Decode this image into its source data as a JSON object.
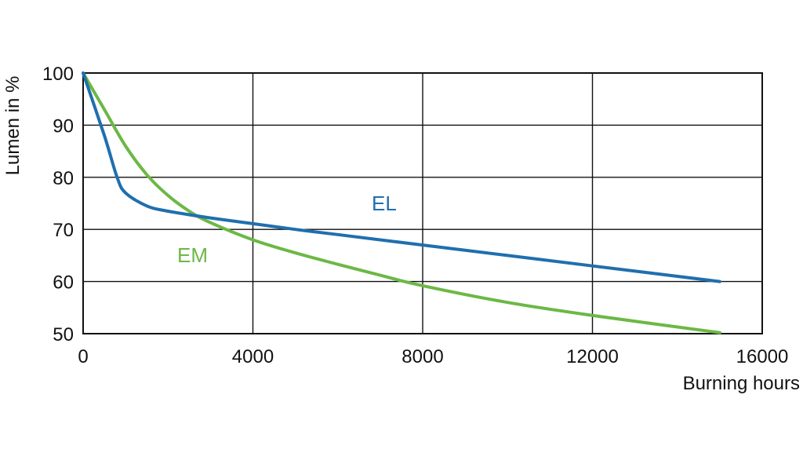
{
  "chart_data": {
    "type": "line",
    "title": "",
    "xlabel": "Burning hours",
    "ylabel": "Lumen in %",
    "xlim": [
      0,
      16000
    ],
    "ylim": [
      50,
      100
    ],
    "x_ticks": [
      "0",
      "4000",
      "8000",
      "12000",
      "16000"
    ],
    "y_ticks": [
      "100",
      "90",
      "80",
      "70",
      "60",
      "50"
    ],
    "grid": true,
    "series": [
      {
        "name": "EL",
        "color": "#1f6fae",
        "points": [
          [
            0,
            100
          ],
          [
            500,
            88
          ],
          [
            800,
            80
          ],
          [
            1000,
            77
          ],
          [
            1500,
            74.5
          ],
          [
            2000,
            73.5
          ],
          [
            3000,
            72.2
          ],
          [
            4000,
            71.1
          ],
          [
            5000,
            70
          ],
          [
            6000,
            69
          ],
          [
            8000,
            67
          ],
          [
            10000,
            65
          ],
          [
            12000,
            63
          ],
          [
            15000,
            60
          ]
        ]
      },
      {
        "name": "EM",
        "color": "#6cb845",
        "points": [
          [
            0,
            100
          ],
          [
            500,
            93
          ],
          [
            1000,
            86
          ],
          [
            1500,
            80.5
          ],
          [
            2000,
            76.5
          ],
          [
            2500,
            73.5
          ],
          [
            3000,
            71.3
          ],
          [
            4000,
            68
          ],
          [
            5000,
            65.5
          ],
          [
            6000,
            63.3
          ],
          [
            7000,
            61.2
          ],
          [
            8000,
            59.2
          ],
          [
            10000,
            56
          ],
          [
            12000,
            53.5
          ],
          [
            15000,
            50.2
          ]
        ]
      }
    ]
  }
}
